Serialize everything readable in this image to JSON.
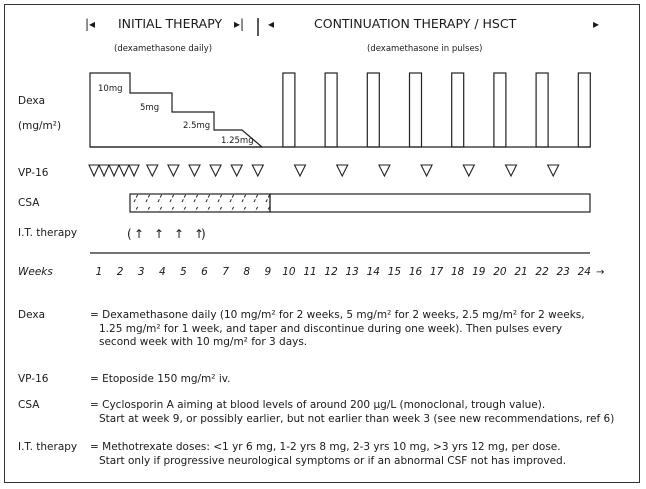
{
  "header": {
    "initial": "INITIAL THERAPY",
    "continuation": "CONTINUATION THERAPY / HSCT",
    "initial_note": "(dexamethasone daily)",
    "continuation_note": "(dexamethasone in pulses)"
  },
  "rows": {
    "dexa_label_1": "Dexa",
    "dexa_label_2": "(mg/m²)",
    "vp16_label": "VP-16",
    "csa_label": "CSA",
    "it_label": "I.T. therapy",
    "weeks_label": "Weeks"
  },
  "dose_labels": [
    "10mg",
    "5mg",
    "2.5mg",
    "1.25mg"
  ],
  "weeks": [
    "1",
    "2",
    "3",
    "4",
    "5",
    "6",
    "7",
    "8",
    "9",
    "10",
    "11",
    "12",
    "13",
    "14",
    "15",
    "16",
    "17",
    "18",
    "19",
    "20",
    "21",
    "22",
    "23",
    "24"
  ],
  "legend": [
    {
      "term": "Dexa",
      "lines": [
        "= Dexamethasone daily (10 mg/m² for 2 weeks, 5 mg/m² for 2 weeks, 2.5 mg/m² for 2 weeks,",
        "1.25 mg/m² for 1 week, and taper and discontinue during one week). Then pulses every",
        "second week with 10 mg/m² for 3 days."
      ]
    },
    {
      "term": "VP-16",
      "lines": [
        "= Etoposide 150 mg/m² iv."
      ]
    },
    {
      "term": "CSA",
      "lines": [
        "= Cyclosporin A aiming at blood levels of around 200 µg/L (monoclonal, trough value).",
        "Start at week 9, or possibly earlier, but not earlier than week 3 (see new recommendations, ref 6)"
      ]
    },
    {
      "term": "I.T. therapy",
      "lines": [
        "= Methotrexate doses: <1  yr 6 mg, 1-2 yrs 8 mg, 2-3 yrs 10 mg, >3 yrs 12 mg, per dose.",
        "Start only if progressive neurological symptoms or if an abnormal CSF not has improved."
      ]
    }
  ]
}
